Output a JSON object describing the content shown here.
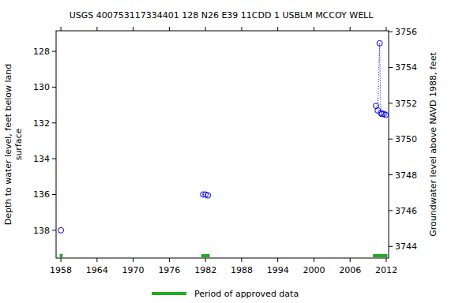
{
  "chart_data": {
    "type": "scatter",
    "title": "USGS 400753117334401 128  N26 E39 11CDD 1    USBLM MCCOY WELL",
    "y_label_lines": [
      "Depth to water level, feet below land",
      "surface"
    ],
    "y2_label": "Groundwater level above NAVD 1988, feet",
    "xlim": [
      1957.2,
      2012.4
    ],
    "xticks": [
      1958,
      1964,
      1970,
      1976,
      1982,
      1988,
      1994,
      2000,
      2006,
      2012
    ],
    "ylim": [
      126.85,
      139.55
    ],
    "yticks": [
      128,
      130,
      132,
      134,
      136,
      138
    ],
    "y2lim": [
      3756.05,
      3743.35
    ],
    "y2ticks": [
      3744,
      3746,
      3748,
      3750,
      3752,
      3754,
      3756
    ],
    "grid": false,
    "series": [
      {
        "color": "#0000ff",
        "marker": "circle",
        "line_style": "dotted",
        "x": [
          1958.0
        ],
        "values": [
          138.0
        ]
      },
      {
        "color": "#0000ff",
        "marker": "circle",
        "line_style": "dotted",
        "x": [
          1981.6,
          1982.0,
          1982.4
        ],
        "values": [
          136.0,
          136.0,
          136.05
        ]
      },
      {
        "color": "#0000ff",
        "marker": "circle",
        "line_style": "dotted",
        "x": [
          2010.3,
          2010.6,
          2010.9,
          2011.1,
          2011.3,
          2011.6,
          2011.9
        ],
        "values": [
          131.05,
          131.3,
          127.55,
          131.45,
          131.5,
          131.5,
          131.55
        ]
      }
    ],
    "approved_periods": [
      {
        "start": 1957.8,
        "end": 1958.3
      },
      {
        "start": 1981.3,
        "end": 1982.7
      },
      {
        "start": 2009.8,
        "end": 2012.2
      }
    ],
    "approved_label": "Period of approved data",
    "approved_color": "#22aa22"
  }
}
